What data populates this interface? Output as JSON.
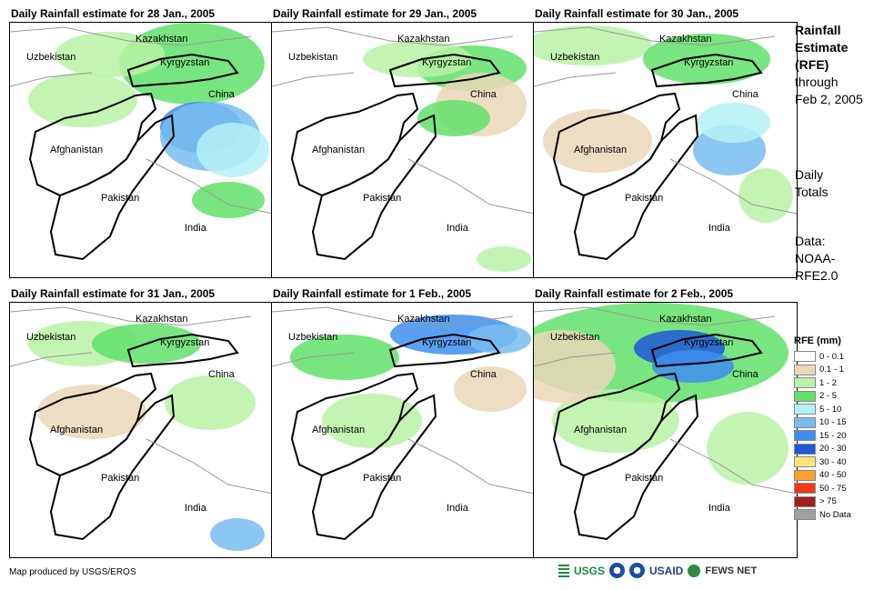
{
  "panels": [
    {
      "title": "Daily Rainfall estimate for 28 Jan., 2005"
    },
    {
      "title": "Daily Rainfall estimate for 29 Jan., 2005"
    },
    {
      "title": "Daily Rainfall estimate for 30 Jan., 2005"
    },
    {
      "title": "Daily Rainfall estimate for 31 Jan., 2005"
    },
    {
      "title": "Daily Rainfall estimate for 1 Feb., 2005"
    },
    {
      "title": "Daily Rainfall estimate for 2 Feb., 2005"
    }
  ],
  "map_labels": {
    "kazakhstan": "Kazakhstan",
    "uzbekistan": "Uzbekistan",
    "kyrgyzstan": "Kyrgyzstan",
    "china": "China",
    "afghanistan": "Afghanistan",
    "pakistan": "Pakistan",
    "india": "India"
  },
  "sidebar": {
    "heading": [
      "Rainfall",
      "Estimate",
      "(RFE)"
    ],
    "through": [
      "through",
      "Feb 2, 2005"
    ],
    "totals": [
      "Daily",
      "Totals"
    ],
    "data": [
      "Data:",
      "NOAA-",
      "RFE2.0"
    ]
  },
  "legend": {
    "title": "RFE (mm)",
    "items": [
      {
        "label": "0 - 0.1",
        "color": "#ffffff"
      },
      {
        "label": "0.1 - 1",
        "color": "#ead7b8"
      },
      {
        "label": "1 - 2",
        "color": "#b8f2a6"
      },
      {
        "label": "2 - 5",
        "color": "#62e06a"
      },
      {
        "label": "5 - 10",
        "color": "#b4f1f5"
      },
      {
        "label": "10 - 15",
        "color": "#78bdf0"
      },
      {
        "label": "15 - 20",
        "color": "#3e8ef0"
      },
      {
        "label": "20 - 30",
        "color": "#1f58d8"
      },
      {
        "label": "30 - 40",
        "color": "#fde37a"
      },
      {
        "label": "40 - 50",
        "color": "#ffa02a"
      },
      {
        "label": "50 - 75",
        "color": "#f03a17"
      },
      {
        "label": "> 75",
        "color": "#a01f1f"
      },
      {
        "label": "No Data",
        "color": "#a0a0a0"
      }
    ]
  },
  "credit": "Map produced by USGS/EROS",
  "logos": {
    "usgs": "USGS",
    "usaid": "USAID",
    "fews": "FEWS NET"
  }
}
